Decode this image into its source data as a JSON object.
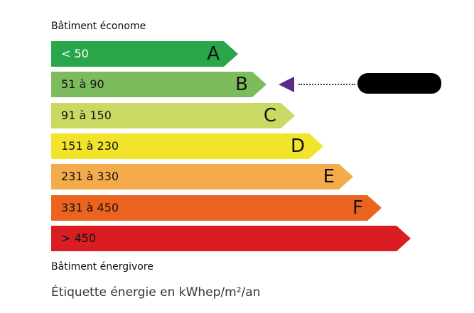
{
  "top_label": "Bâtiment économe",
  "bottom_label": "Bâtiment énergivore",
  "caption": "Étiquette énergie en kWhep/m²/an",
  "current_rating": "B",
  "indicator_color": "#5b2a86",
  "classes": [
    {
      "letter": "A",
      "range": "< 50",
      "color": "#2aa64a",
      "text_color": "#ffffff"
    },
    {
      "letter": "B",
      "range": "51 à 90",
      "color": "#7cbc5c",
      "text_color": "#111111"
    },
    {
      "letter": "C",
      "range": "91 à 150",
      "color": "#c9d963",
      "text_color": "#111111"
    },
    {
      "letter": "D",
      "range": "151 à 230",
      "color": "#f2e42a",
      "text_color": "#111111"
    },
    {
      "letter": "E",
      "range": "231 à 330",
      "color": "#f4ab4c",
      "text_color": "#111111"
    },
    {
      "letter": "F",
      "range": "331 à 450",
      "color": "#ea6420",
      "text_color": "#111111"
    },
    {
      "letter": "",
      "range": "> 450",
      "color": "#d91d22",
      "text_color": "#111111"
    }
  ]
}
